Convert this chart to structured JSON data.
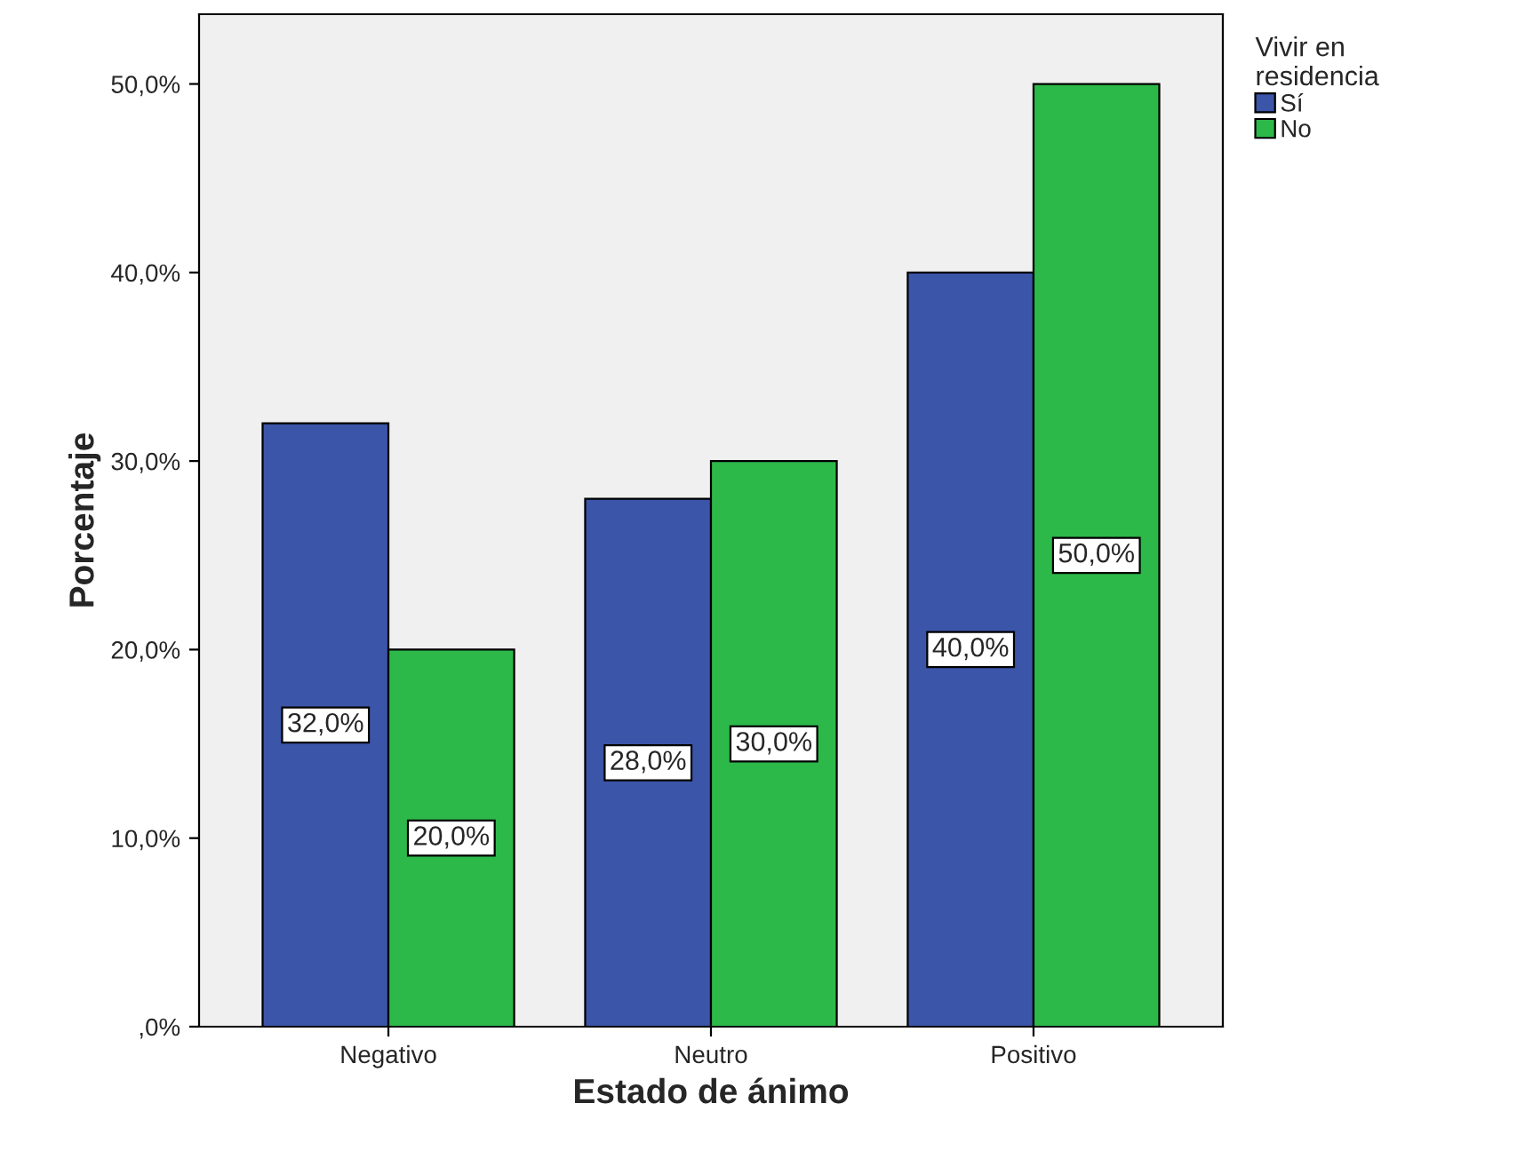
{
  "chart_data": {
    "type": "bar",
    "xlabel": "Estado de ánimo",
    "ylabel": "Porcentaje",
    "legend_title": "Vivir en\nresidencia",
    "categories": [
      "Negativo",
      "Neutro",
      "Positivo"
    ],
    "series": [
      {
        "name": "Sí",
        "color": "#3b55a8",
        "values": [
          32,
          28,
          40
        ],
        "value_labels": [
          "32,0%",
          "28,0%",
          "40,0%"
        ]
      },
      {
        "name": "No",
        "color": "#2db84a",
        "values": [
          20,
          30,
          50
        ],
        "value_labels": [
          "20,0%",
          "30,0%",
          "50,0%"
        ]
      }
    ],
    "ylim": [
      0,
      53.7
    ],
    "yticks": [
      {
        "value": 0,
        "label": ",0%"
      },
      {
        "value": 10,
        "label": "10,0%"
      },
      {
        "value": 20,
        "label": "20,0%"
      },
      {
        "value": 30,
        "label": "30,0%"
      },
      {
        "value": 40,
        "label": "40,0%"
      },
      {
        "value": 50,
        "label": "50,0%"
      }
    ],
    "grid": false,
    "legend": "top right"
  }
}
